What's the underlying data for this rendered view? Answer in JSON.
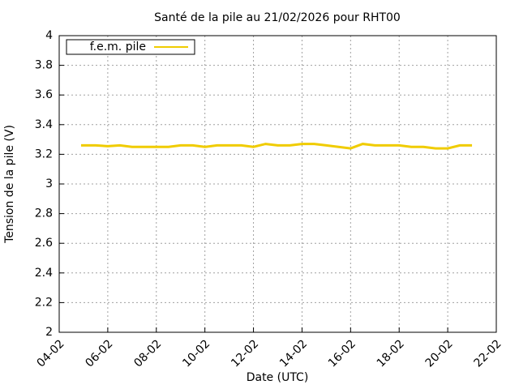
{
  "chart_data": {
    "type": "line",
    "title": "Santé de la pile au 21/02/2026 pour RHT00",
    "x_label": "Date (UTC)",
    "y_label": "Tension de la pile (V)",
    "x": [
      4.9,
      5.5,
      6,
      6.5,
      7,
      7.5,
      8,
      8.5,
      9,
      9.5,
      10,
      10.5,
      11,
      11.5,
      12,
      12.5,
      13,
      13.5,
      14,
      14.5,
      15,
      15.5,
      16,
      16.5,
      17,
      17.5,
      18,
      18.5,
      19,
      19.5,
      20,
      20.5,
      21
    ],
    "series": [
      {
        "name": "f.e.m. pile",
        "color": "#f0cc00",
        "values": [
          3.26,
          3.26,
          3.255,
          3.26,
          3.25,
          3.25,
          3.25,
          3.25,
          3.26,
          3.26,
          3.25,
          3.26,
          3.26,
          3.26,
          3.25,
          3.27,
          3.26,
          3.26,
          3.27,
          3.27,
          3.26,
          3.25,
          3.24,
          3.27,
          3.26,
          3.26,
          3.26,
          3.25,
          3.25,
          3.24,
          3.24,
          3.26,
          3.26
        ]
      }
    ],
    "xlim": [
      4,
      22
    ],
    "xticks": [
      {
        "value": 4,
        "label": "04-02"
      },
      {
        "value": 6,
        "label": "06-02"
      },
      {
        "value": 8,
        "label": "08-02"
      },
      {
        "value": 10,
        "label": "10-02"
      },
      {
        "value": 12,
        "label": "12-02"
      },
      {
        "value": 14,
        "label": "14-02"
      },
      {
        "value": 16,
        "label": "16-02"
      },
      {
        "value": 18,
        "label": "18-02"
      },
      {
        "value": 20,
        "label": "20-02"
      },
      {
        "value": 22,
        "label": "22-02"
      }
    ],
    "ylim": [
      2,
      4
    ],
    "yticks": [
      2,
      2.2,
      2.4,
      2.6,
      2.8,
      3,
      3.2,
      3.4,
      3.6,
      3.8,
      4
    ],
    "grid": true,
    "legend": "top-left"
  }
}
